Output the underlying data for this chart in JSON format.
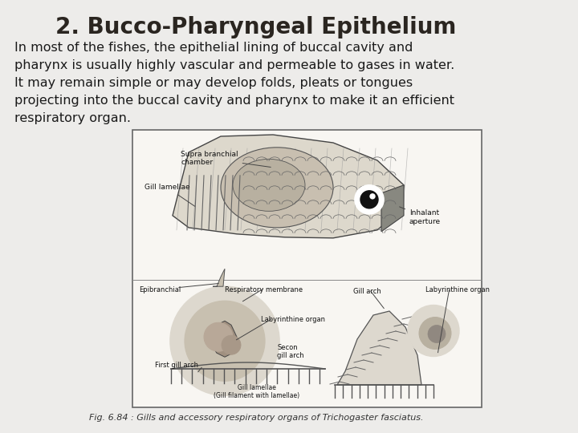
{
  "title": "2. Bucco-Pharyngeal Epithelium",
  "title_fontsize": 20,
  "title_color": "#2a2520",
  "body_text": "In most of the fishes, the epithelial lining of buccal cavity and\npharynx is usually highly vascular and permeable to gases in water.\nIt may remain simple or may develop folds, pleats or tongues\nprojecting into the buccal cavity and pharynx to make it an efficient\nrespiratory organ.",
  "body_fontsize": 11.5,
  "body_color": "#1a1a1a",
  "fig_caption": "Fig. 6.84 : Gills and accessory respiratory organs of Trichogaster fasciatus.",
  "caption_fontsize": 8,
  "caption_color": "#333333",
  "bg_color": "#edecea",
  "right_strip_colors": [
    "#7a7260",
    "#8a8272",
    "#6a6250",
    "#504840"
  ],
  "diagram_bg": "#f8f6f2",
  "diagram_border": "#666666"
}
